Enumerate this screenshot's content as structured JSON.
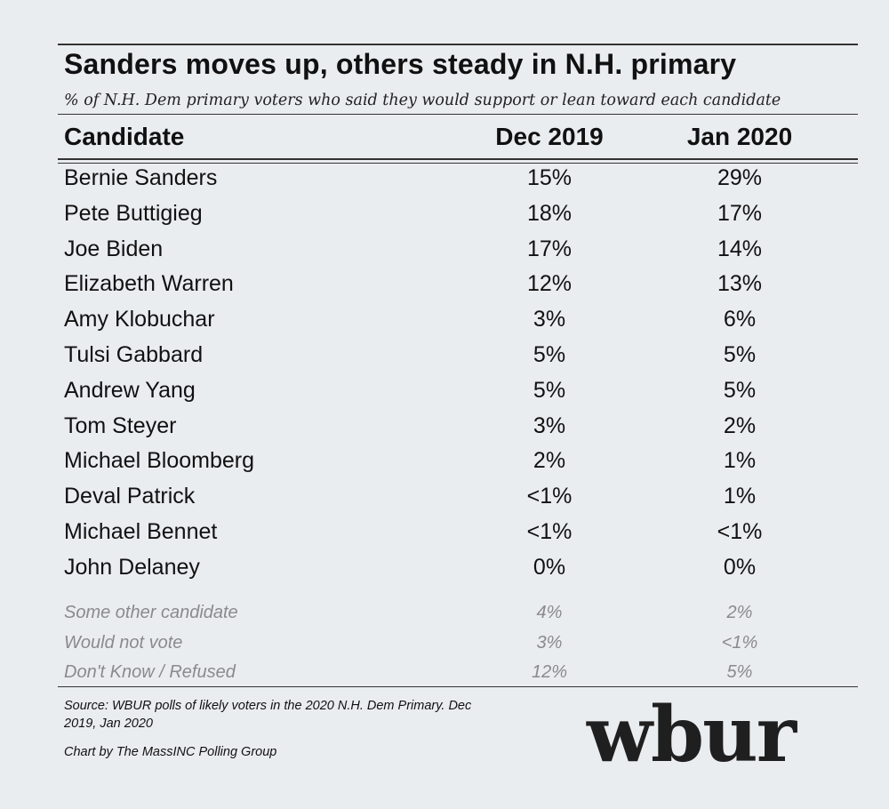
{
  "chart_data": {
    "type": "table",
    "title": "Sanders moves up, others steady in N.H. primary",
    "subtitle": "% of N.H. Dem primary voters who said they would support or lean toward each candidate",
    "columns": [
      "Candidate",
      "Dec 2019",
      "Jan 2020"
    ],
    "rows": [
      {
        "candidate": "Bernie Sanders",
        "dec": "15%",
        "jan": "29%"
      },
      {
        "candidate": "Pete Buttigieg",
        "dec": "18%",
        "jan": "17%"
      },
      {
        "candidate": "Joe Biden",
        "dec": "17%",
        "jan": "14%"
      },
      {
        "candidate": "Elizabeth Warren",
        "dec": "12%",
        "jan": "13%"
      },
      {
        "candidate": "Amy Klobuchar",
        "dec": "3%",
        "jan": "6%"
      },
      {
        "candidate": "Tulsi Gabbard",
        "dec": "5%",
        "jan": "5%"
      },
      {
        "candidate": "Andrew Yang",
        "dec": "5%",
        "jan": "5%"
      },
      {
        "candidate": "Tom Steyer",
        "dec": "3%",
        "jan": "2%"
      },
      {
        "candidate": "Michael Bloomberg",
        "dec": "2%",
        "jan": "1%"
      },
      {
        "candidate": "Deval Patrick",
        "dec": "<1%",
        "jan": "1%"
      },
      {
        "candidate": "Michael Bennet",
        "dec": "<1%",
        "jan": "<1%"
      },
      {
        "candidate": "John Delaney",
        "dec": "0%",
        "jan": "0%"
      }
    ],
    "other_rows": [
      {
        "candidate": "Some other candidate",
        "dec": "4%",
        "jan": "2%"
      },
      {
        "candidate": "Would not vote",
        "dec": "3%",
        "jan": "<1%"
      },
      {
        "candidate": "Don't Know / Refused",
        "dec": "12%",
        "jan": "5%"
      }
    ],
    "source": "Source: WBUR polls of likely voters in the 2020 N.H. Dem Primary. Dec 2019, Jan 2020",
    "credit": "Chart by The MassINC Polling Group",
    "logo": "wbur"
  }
}
